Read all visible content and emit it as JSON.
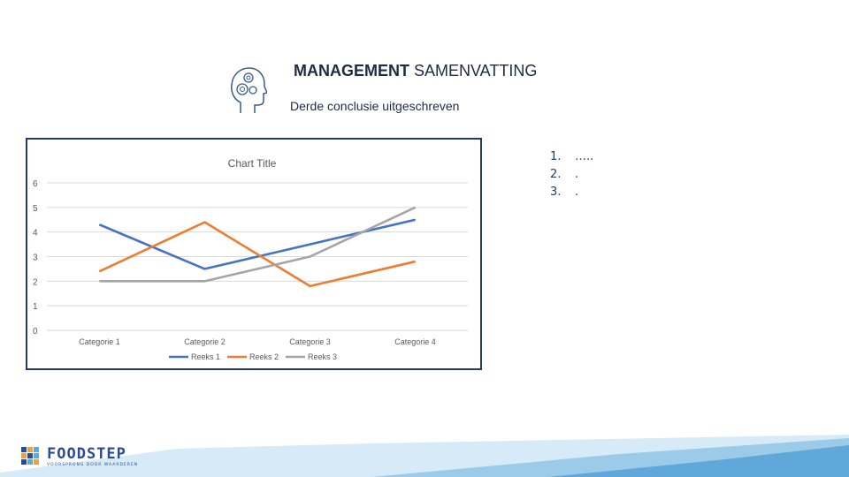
{
  "header": {
    "title_bold": "MANAGEMENT",
    "title_rest": " SAMENVATTING",
    "subtitle": "Derde conclusie uitgeschreven",
    "icon": "head-gears-icon"
  },
  "list": [
    {
      "num": "1.",
      "text": "….."
    },
    {
      "num": "2.",
      "text": "."
    },
    {
      "num": "3.",
      "text": "."
    }
  ],
  "footer": {
    "brand": "FOODSTEP",
    "tagline": "VOORSPRONG DOOR WAARDEREN",
    "band_color": "#5fa8d9",
    "logo_colors": [
      "#2a4a9a",
      "#e8a33d",
      "#5fa8d9",
      "#e8a33d",
      "#2a4a9a",
      "#5fa8d9",
      "#2a4a9a",
      "#5fa8d9",
      "#e8a33d"
    ]
  },
  "chart_data": {
    "type": "line",
    "title": "Chart Title",
    "categories": [
      "Categorie 1",
      "Categorie 2",
      "Categorie 3",
      "Categorie 4"
    ],
    "series": [
      {
        "name": "Reeks 1",
        "values": [
          4.3,
          2.5,
          3.5,
          4.5
        ],
        "color": "#4472c4"
      },
      {
        "name": "Reeks 2",
        "values": [
          2.4,
          4.4,
          1.8,
          2.8
        ],
        "color": "#ed7d31"
      },
      {
        "name": "Reeks 3",
        "values": [
          2,
          2,
          3,
          5
        ],
        "color": "#a5a5a5"
      }
    ],
    "ylim": [
      0,
      6
    ],
    "yticks": [
      "0",
      "1",
      "2",
      "3",
      "4",
      "5",
      "6"
    ],
    "grid": true,
    "legend": "bottom"
  }
}
